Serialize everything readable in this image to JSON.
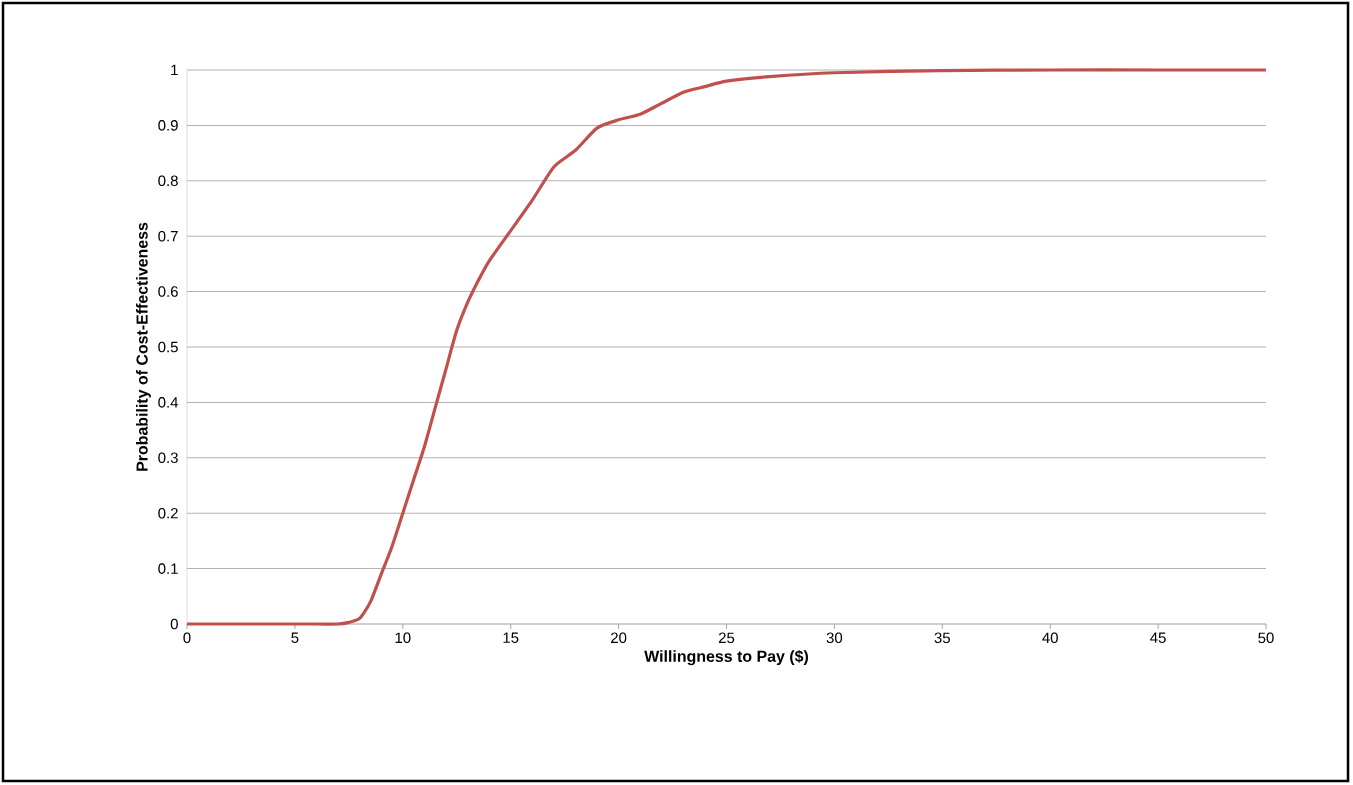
{
  "chart_data": {
    "type": "line",
    "xlabel": "Willingness to Pay ($)",
    "ylabel": "Probability of Cost-Effectiveness",
    "x": [
      0,
      2,
      4,
      6,
      7,
      7.5,
      8,
      8.5,
      9,
      9.5,
      10,
      10.5,
      11,
      11.5,
      12,
      12.5,
      13,
      13.5,
      14,
      15,
      16,
      17,
      18,
      19,
      20,
      21,
      22,
      23,
      24,
      25,
      27,
      30,
      35,
      40,
      45,
      50
    ],
    "series": [
      {
        "color": "#c0504d",
        "values": [
          0,
          0,
          0,
          0,
          0,
          0.003,
          0.01,
          0.04,
          0.09,
          0.14,
          0.2,
          0.26,
          0.32,
          0.39,
          0.46,
          0.53,
          0.58,
          0.62,
          0.655,
          0.71,
          0.765,
          0.825,
          0.855,
          0.895,
          0.91,
          0.92,
          0.94,
          0.96,
          0.97,
          0.98,
          0.988,
          0.995,
          0.999,
          1,
          1,
          1
        ]
      }
    ],
    "xlim": [
      0,
      50
    ],
    "ylim": [
      0,
      1
    ],
    "xticks": [
      0,
      5,
      10,
      15,
      20,
      25,
      30,
      35,
      40,
      45,
      50
    ],
    "yticks": [
      0,
      0.1,
      0.2,
      0.3,
      0.4,
      0.5,
      0.6,
      0.7,
      0.8,
      0.9,
      1
    ],
    "grid": "y",
    "line_style": "solid"
  }
}
